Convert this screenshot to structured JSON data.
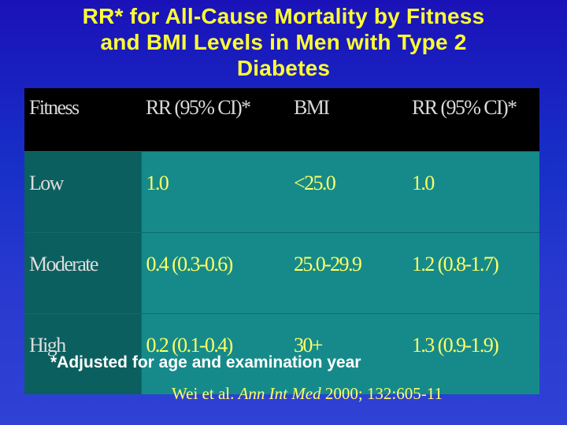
{
  "slide": {
    "title_line1": "RR* for All-Cause Mortality by Fitness",
    "title_line2": "and BMI Levels in Men with Type 2",
    "title_line3": "Diabetes"
  },
  "table": {
    "headers": [
      "Fitness",
      "RR (95% CI)*",
      "BMI",
      "RR (95% CI)*"
    ],
    "rows": [
      [
        "Low",
        "1.0",
        "<25.0",
        "1.0"
      ],
      [
        "Moderate",
        "0.4 (0.3-0.6)",
        "25.0-29.9",
        "1.2 (0.8-1.7)"
      ],
      [
        "High",
        "0.2 (0.1-0.4)",
        "30+",
        "1.3 (0.9-1.9)"
      ]
    ]
  },
  "footnote": "*Adjusted for age and examination year",
  "citation": {
    "authors": "Wei et al.",
    "journal": "Ann Int Med",
    "details": "2000; 132:605-11"
  },
  "colors": {
    "background": "#1a1fc0",
    "title": "#ffff33",
    "header_bg": "#000000",
    "cell_bg": "#168a8a",
    "cell_text": "#ffff66"
  }
}
